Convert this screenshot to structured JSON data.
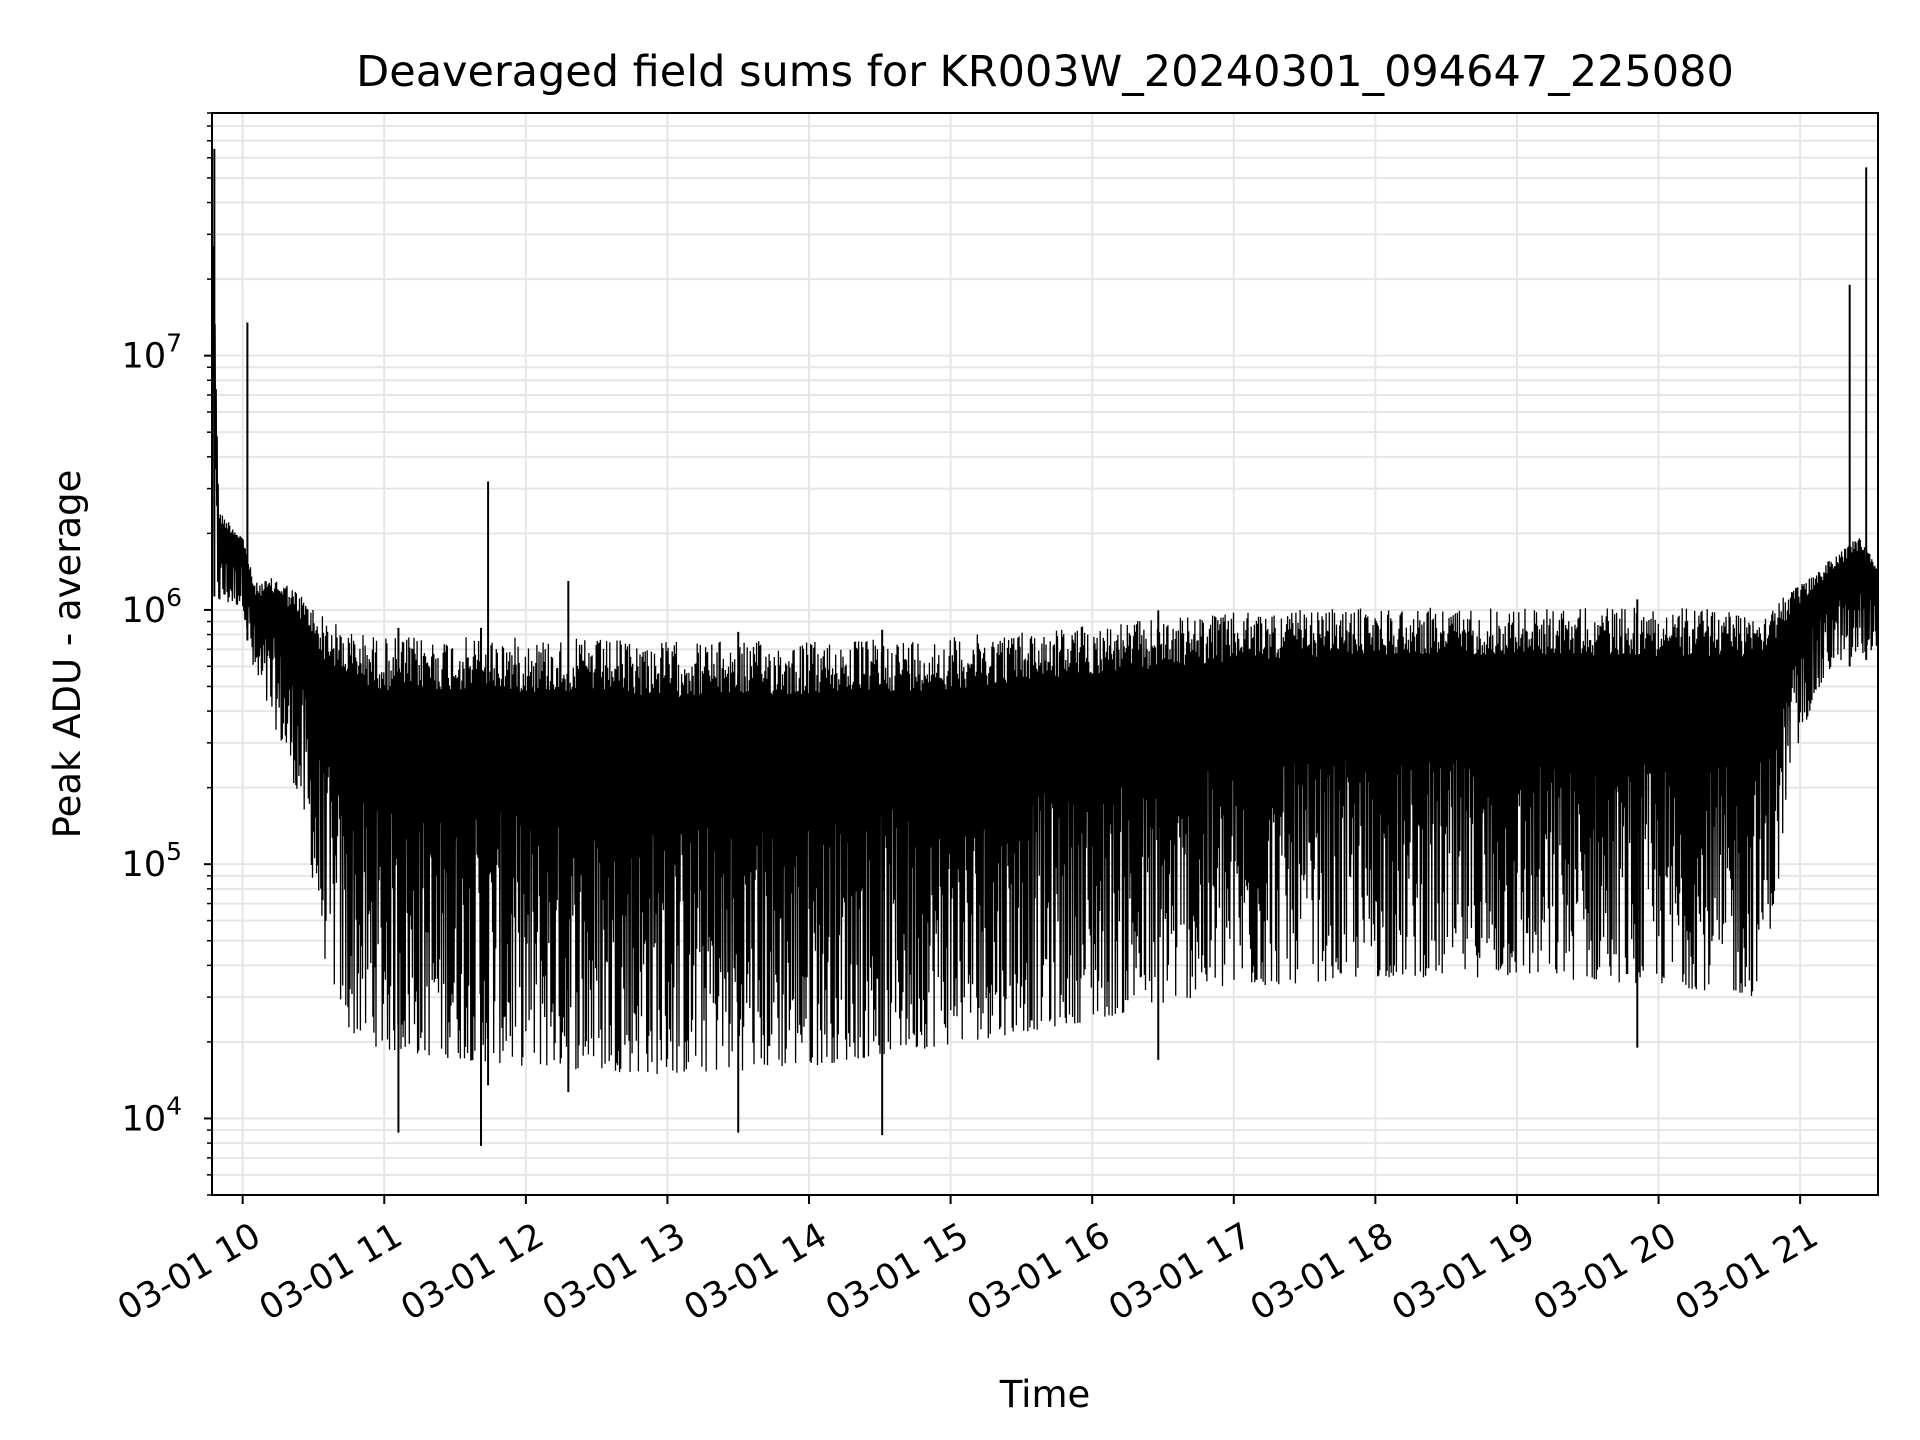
{
  "chart_data": {
    "type": "line",
    "title": "Deaveraged field sums for KR003W_20240301_094647_225080",
    "xlabel": "Time",
    "ylabel": "Peak ADU - average",
    "yscale": "log",
    "ylim": [
      5000,
      90000000
    ],
    "xlim": [
      "2024-03-01 09:47",
      "2024-03-01 21:33"
    ],
    "grid": true,
    "line_color": "#000000",
    "x_ticks": [
      {
        "value": "2024-03-01 10:00",
        "label": "03-01 10"
      },
      {
        "value": "2024-03-01 11:00",
        "label": "03-01 11"
      },
      {
        "value": "2024-03-01 12:00",
        "label": "03-01 12"
      },
      {
        "value": "2024-03-01 13:00",
        "label": "03-01 13"
      },
      {
        "value": "2024-03-01 14:00",
        "label": "03-01 14"
      },
      {
        "value": "2024-03-01 15:00",
        "label": "03-01 15"
      },
      {
        "value": "2024-03-01 16:00",
        "label": "03-01 16"
      },
      {
        "value": "2024-03-01 17:00",
        "label": "03-01 17"
      },
      {
        "value": "2024-03-01 18:00",
        "label": "03-01 18"
      },
      {
        "value": "2024-03-01 19:00",
        "label": "03-01 19"
      },
      {
        "value": "2024-03-01 20:00",
        "label": "03-01 20"
      },
      {
        "value": "2024-03-01 21:00",
        "label": "03-01 21"
      }
    ],
    "y_ticks": [
      {
        "value": 10000,
        "base": "10",
        "exp": "4"
      },
      {
        "value": 100000,
        "base": "10",
        "exp": "5"
      },
      {
        "value": 1000000,
        "base": "10",
        "exp": "6"
      },
      {
        "value": 10000000,
        "base": "10",
        "exp": "7"
      }
    ],
    "envelope": [
      {
        "time": "2024-03-01 09:47",
        "upper": 60000000,
        "lower": 1200000
      },
      {
        "time": "2024-03-01 09:50",
        "upper": 2500000,
        "lower": 1000000
      },
      {
        "time": "2024-03-01 10:00",
        "upper": 2000000,
        "lower": 1000000
      },
      {
        "time": "2024-03-01 10:05",
        "upper": 1300000,
        "lower": 500000
      },
      {
        "time": "2024-03-01 10:15",
        "upper": 1400000,
        "lower": 300000
      },
      {
        "time": "2024-03-01 10:25",
        "upper": 1200000,
        "lower": 150000
      },
      {
        "time": "2024-03-01 10:35",
        "upper": 1000000,
        "lower": 35000
      },
      {
        "time": "2024-03-01 10:45",
        "upper": 900000,
        "lower": 18000
      },
      {
        "time": "2024-03-01 11:00",
        "upper": 850000,
        "lower": 15000
      },
      {
        "time": "2024-03-01 12:00",
        "upper": 850000,
        "lower": 13000
      },
      {
        "time": "2024-03-01 13:00",
        "upper": 820000,
        "lower": 12000
      },
      {
        "time": "2024-03-01 14:00",
        "upper": 820000,
        "lower": 13000
      },
      {
        "time": "2024-03-01 15:00",
        "upper": 850000,
        "lower": 16000
      },
      {
        "time": "2024-03-01 16:00",
        "upper": 950000,
        "lower": 20000
      },
      {
        "time": "2024-03-01 17:00",
        "upper": 1050000,
        "lower": 27000
      },
      {
        "time": "2024-03-01 18:00",
        "upper": 1100000,
        "lower": 30000
      },
      {
        "time": "2024-03-01 19:00",
        "upper": 1100000,
        "lower": 30000
      },
      {
        "time": "2024-03-01 20:00",
        "upper": 1100000,
        "lower": 28000
      },
      {
        "time": "2024-03-01 20:40",
        "upper": 1100000,
        "lower": 25000
      },
      {
        "time": "2024-03-01 20:50",
        "upper": 1150000,
        "lower": 60000
      },
      {
        "time": "2024-03-01 20:55",
        "upper": 1200000,
        "lower": 200000
      },
      {
        "time": "2024-03-01 21:05",
        "upper": 1400000,
        "lower": 400000
      },
      {
        "time": "2024-03-01 21:15",
        "upper": 1700000,
        "lower": 600000
      },
      {
        "time": "2024-03-01 21:25",
        "upper": 2000000,
        "lower": 600000
      },
      {
        "time": "2024-03-01 21:33",
        "upper": 1500000,
        "lower": 700000
      }
    ],
    "spikes": [
      {
        "time": "2024-03-01 09:48",
        "value": 65000000
      },
      {
        "time": "2024-03-01 10:02",
        "value": 13500000
      },
      {
        "time": "2024-03-01 11:44",
        "value": 3200000
      },
      {
        "time": "2024-03-01 12:18",
        "value": 1300000
      },
      {
        "time": "2024-03-01 21:21",
        "value": 19000000
      },
      {
        "time": "2024-03-01 21:28",
        "value": 55000000
      }
    ],
    "dips": [
      {
        "time": "2024-03-01 11:41",
        "value": 7800
      },
      {
        "time": "2024-03-01 11:06",
        "value": 8800
      },
      {
        "time": "2024-03-01 13:30",
        "value": 8800
      },
      {
        "time": "2024-03-01 14:31",
        "value": 8600
      },
      {
        "time": "2024-03-01 16:28",
        "value": 17000
      },
      {
        "time": "2024-03-01 19:51",
        "value": 19000
      }
    ]
  }
}
